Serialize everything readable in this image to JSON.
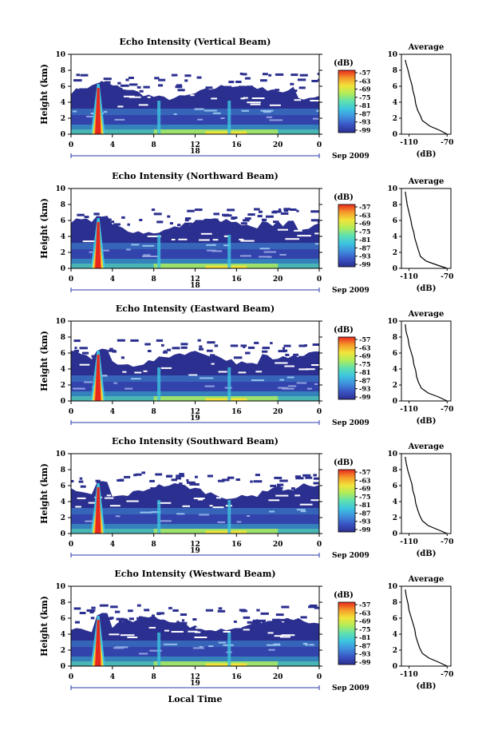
{
  "chart_data": [
    {
      "type": "heatmap",
      "title": "Echo Intensity (Vertical Beam)",
      "ylabel": "Height (km)",
      "yticks": [
        "0",
        "2",
        "4",
        "6",
        "8",
        "10"
      ],
      "xticks": [
        "0",
        "4",
        "8",
        "12",
        "16",
        "20",
        "0"
      ],
      "date_label": "18",
      "month_label": "Sep 2009",
      "colorbar": {
        "unit": "(dB)",
        "ticks": [
          "-57",
          "-63",
          "-69",
          "-75",
          "-81",
          "-87",
          "-93",
          "-99"
        ]
      },
      "profile": {
        "title": "Average",
        "xticks": [
          "-110",
          "-70"
        ],
        "yticks": [
          "0",
          "2",
          "4",
          "6",
          "8",
          "10"
        ],
        "xlabel": "(dB)",
        "points": [
          [
            -70,
            0
          ],
          [
            -78,
            0.5
          ],
          [
            -88,
            1.0
          ],
          [
            -96,
            1.7
          ],
          [
            -98,
            2.3
          ],
          [
            -101,
            3.0
          ],
          [
            -103,
            3.8
          ],
          [
            -104,
            4.6
          ],
          [
            -106,
            5.5
          ],
          [
            -107,
            6.2
          ],
          [
            -109,
            7.0
          ],
          [
            -111,
            8.0
          ],
          [
            -113,
            8.8
          ],
          [
            -114,
            9.3
          ]
        ]
      }
    },
    {
      "type": "heatmap",
      "title": "Echo Intensity (Northward Beam)",
      "ylabel": "Height (km)",
      "yticks": [
        "0",
        "2",
        "4",
        "6",
        "8",
        "10"
      ],
      "xticks": [
        "0",
        "4",
        "8",
        "12",
        "16",
        "20",
        "0"
      ],
      "date_label": "18",
      "month_label": "Sep 2009",
      "colorbar": {
        "unit": "(dB)",
        "ticks": [
          "-57",
          "-63",
          "-69",
          "-75",
          "-81",
          "-87",
          "-93",
          "-99"
        ]
      },
      "profile": {
        "title": "Average",
        "xticks": [
          "-110",
          "-70"
        ],
        "yticks": [
          "0",
          "2",
          "4",
          "6",
          "8",
          "10"
        ],
        "xlabel": "(dB)",
        "points": [
          [
            -70,
            0
          ],
          [
            -80,
            0.4
          ],
          [
            -92,
            0.9
          ],
          [
            -98,
            1.5
          ],
          [
            -100,
            2.2
          ],
          [
            -102,
            3.0
          ],
          [
            -104,
            3.8
          ],
          [
            -105,
            4.5
          ],
          [
            -107,
            5.3
          ],
          [
            -108,
            6.0
          ],
          [
            -110,
            7.0
          ],
          [
            -112,
            8.0
          ],
          [
            -113,
            8.8
          ],
          [
            -114,
            9.6
          ]
        ]
      }
    },
    {
      "type": "heatmap",
      "title": "Echo Intensity (Eastward Beam)",
      "ylabel": "Height (km)",
      "yticks": [
        "0",
        "2",
        "4",
        "6",
        "8",
        "10"
      ],
      "xticks": [
        "0",
        "4",
        "8",
        "12",
        "16",
        "20",
        "0"
      ],
      "date_label": "19",
      "month_label": "Sep 2009",
      "colorbar": {
        "unit": "(dB)",
        "ticks": [
          "-57",
          "-63",
          "-69",
          "-75",
          "-81",
          "-87",
          "-93",
          "-99"
        ]
      },
      "profile": {
        "title": "Average",
        "xticks": [
          "-110",
          "-70"
        ],
        "yticks": [
          "0",
          "2",
          "4",
          "6",
          "8",
          "10"
        ],
        "xlabel": "(dB)",
        "points": [
          [
            -70,
            0
          ],
          [
            -79,
            0.5
          ],
          [
            -90,
            1.0
          ],
          [
            -97,
            1.6
          ],
          [
            -100,
            2.3
          ],
          [
            -102,
            3.0
          ],
          [
            -103,
            3.8
          ],
          [
            -105,
            4.6
          ],
          [
            -106,
            5.4
          ],
          [
            -108,
            6.2
          ],
          [
            -110,
            7.0
          ],
          [
            -111,
            7.8
          ],
          [
            -113,
            8.6
          ],
          [
            -114,
            9.6
          ]
        ]
      }
    },
    {
      "type": "heatmap",
      "title": "Echo Intensity (Southward Beam)",
      "ylabel": "Height (km)",
      "yticks": [
        "0",
        "2",
        "4",
        "6",
        "8",
        "10"
      ],
      "xticks": [
        "0",
        "4",
        "8",
        "12",
        "16",
        "20",
        "0"
      ],
      "date_label": "19",
      "month_label": "Sep 2009",
      "colorbar": {
        "unit": "(dB)",
        "ticks": [
          "-57",
          "-63",
          "-69",
          "-75",
          "-81",
          "-87",
          "-93",
          "-99"
        ]
      },
      "profile": {
        "title": "Average",
        "xticks": [
          "-110",
          "-70"
        ],
        "yticks": [
          "0",
          "2",
          "4",
          "6",
          "8",
          "10"
        ],
        "xlabel": "(dB)",
        "points": [
          [
            -70,
            0
          ],
          [
            -80,
            0.5
          ],
          [
            -90,
            1.0
          ],
          [
            -96,
            1.6
          ],
          [
            -99,
            2.3
          ],
          [
            -101,
            3.0
          ],
          [
            -103,
            3.8
          ],
          [
            -104,
            4.6
          ],
          [
            -106,
            5.4
          ],
          [
            -107,
            6.2
          ],
          [
            -109,
            7.0
          ],
          [
            -111,
            7.8
          ],
          [
            -113,
            8.8
          ],
          [
            -114,
            9.6
          ]
        ]
      }
    },
    {
      "type": "heatmap",
      "title": "Echo Intensity (Westward Beam)",
      "ylabel": "Height (km)",
      "yticks": [
        "0",
        "2",
        "4",
        "6",
        "8",
        "10"
      ],
      "xticks": [
        "0",
        "4",
        "8",
        "12",
        "16",
        "20",
        "0"
      ],
      "date_label": "19",
      "month_label": "Sep 2009",
      "xlabel": "Local Time",
      "colorbar": {
        "unit": "(dB)",
        "ticks": [
          "-57",
          "-63",
          "-69",
          "-75",
          "-81",
          "-87",
          "-93",
          "-99"
        ]
      },
      "profile": {
        "title": "Average",
        "xticks": [
          "-110",
          "-70"
        ],
        "yticks": [
          "0",
          "2",
          "4",
          "6",
          "8",
          "10"
        ],
        "xlabel": "(dB)",
        "points": [
          [
            -70,
            0
          ],
          [
            -79,
            0.5
          ],
          [
            -89,
            1.0
          ],
          [
            -96,
            1.6
          ],
          [
            -99,
            2.3
          ],
          [
            -101,
            3.0
          ],
          [
            -103,
            3.8
          ],
          [
            -104,
            4.6
          ],
          [
            -106,
            5.4
          ],
          [
            -108,
            6.2
          ],
          [
            -110,
            7.0
          ],
          [
            -111,
            7.8
          ],
          [
            -113,
            8.8
          ],
          [
            -114,
            9.6
          ]
        ]
      }
    }
  ],
  "colors": {
    "scale": [
      "#2b2f8f",
      "#3a54c4",
      "#3f8fdd",
      "#3cc4e0",
      "#5de0b0",
      "#b0ec5a",
      "#f2e43a",
      "#f59a2a",
      "#e8281e"
    ],
    "background_echo": "#3340a4",
    "line": "#000000"
  }
}
